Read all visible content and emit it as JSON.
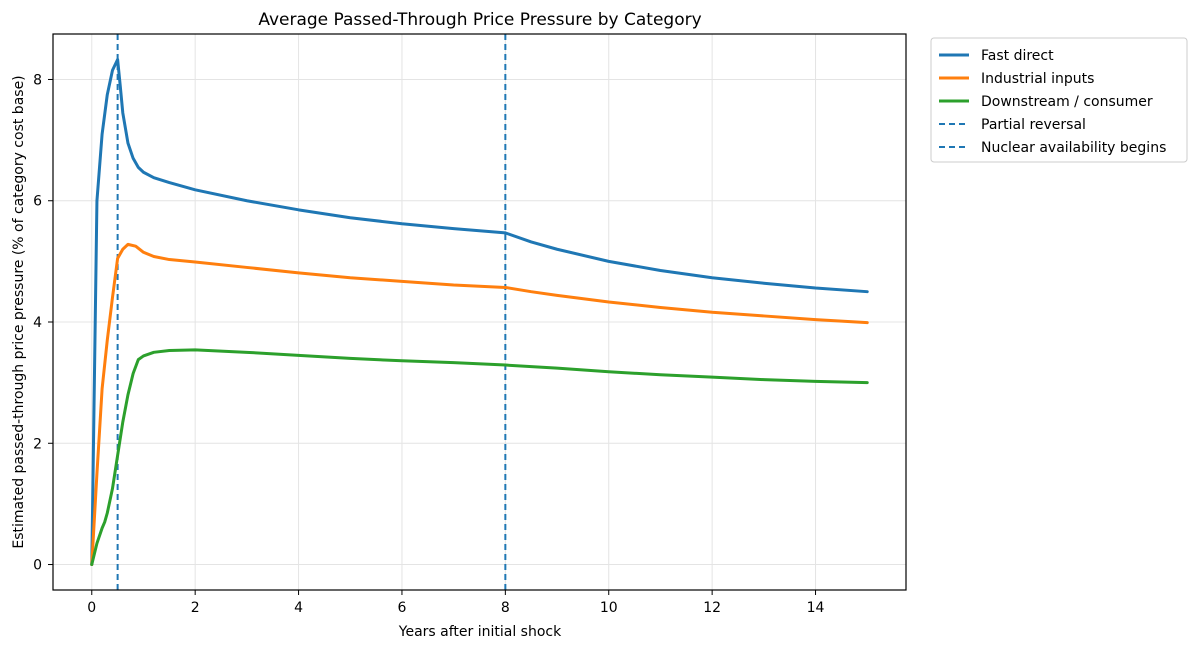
{
  "chart_data": {
    "type": "line",
    "title": "Average Passed-Through Price Pressure by Category",
    "xlabel": "Years after initial shock",
    "ylabel": "Estimated passed-through price pressure (% of category cost base)",
    "xlim": [
      -0.75,
      15.75
    ],
    "ylim": [
      -0.42,
      8.75
    ],
    "xticks": [
      0,
      2,
      4,
      6,
      8,
      10,
      12,
      14
    ],
    "yticks": [
      0,
      2,
      4,
      6,
      8
    ],
    "grid": true,
    "legend_position": "outside-right-top",
    "series": [
      {
        "name": "Fast direct",
        "color": "#1f77b4",
        "x": [
          0,
          0.1,
          0.2,
          0.3,
          0.4,
          0.5,
          0.55,
          0.6,
          0.7,
          0.8,
          0.9,
          1.0,
          1.2,
          1.5,
          2,
          3,
          4,
          5,
          6,
          7,
          8,
          8.5,
          9,
          10,
          11,
          12,
          13,
          14,
          15
        ],
        "y": [
          0,
          6.0,
          7.1,
          7.75,
          8.15,
          8.33,
          7.9,
          7.45,
          6.95,
          6.7,
          6.55,
          6.47,
          6.38,
          6.3,
          6.18,
          6.0,
          5.85,
          5.72,
          5.62,
          5.54,
          5.47,
          5.32,
          5.2,
          5.0,
          4.85,
          4.73,
          4.64,
          4.56,
          4.5
        ]
      },
      {
        "name": "Industrial inputs",
        "color": "#ff7f0e",
        "x": [
          0,
          0.1,
          0.2,
          0.3,
          0.4,
          0.5,
          0.6,
          0.7,
          0.85,
          1.0,
          1.2,
          1.5,
          2,
          3,
          4,
          5,
          6,
          7,
          8,
          8.5,
          9,
          10,
          11,
          12,
          13,
          14,
          15
        ],
        "y": [
          0,
          1.5,
          2.9,
          3.7,
          4.4,
          5.05,
          5.2,
          5.28,
          5.25,
          5.15,
          5.08,
          5.03,
          4.99,
          4.9,
          4.81,
          4.73,
          4.67,
          4.61,
          4.57,
          4.5,
          4.44,
          4.33,
          4.24,
          4.16,
          4.1,
          4.04,
          3.99
        ]
      },
      {
        "name": "Downstream / consumer",
        "color": "#2ca02c",
        "x": [
          0,
          0.1,
          0.2,
          0.25,
          0.3,
          0.4,
          0.5,
          0.6,
          0.7,
          0.8,
          0.9,
          1.0,
          1.2,
          1.5,
          2,
          3,
          4,
          5,
          6,
          7,
          8,
          9,
          10,
          11,
          12,
          13,
          14,
          15
        ],
        "y": [
          0,
          0.35,
          0.6,
          0.7,
          0.85,
          1.25,
          1.8,
          2.35,
          2.8,
          3.15,
          3.38,
          3.44,
          3.5,
          3.53,
          3.54,
          3.5,
          3.45,
          3.4,
          3.36,
          3.33,
          3.29,
          3.24,
          3.18,
          3.13,
          3.09,
          3.05,
          3.02,
          3.0
        ]
      }
    ],
    "vlines": [
      {
        "name": "Partial reversal",
        "x": 0.5,
        "color": "#1f77b4",
        "style": "dashed"
      },
      {
        "name": "Nuclear availability begins",
        "x": 8,
        "color": "#1f77b4",
        "style": "dashed"
      }
    ]
  }
}
